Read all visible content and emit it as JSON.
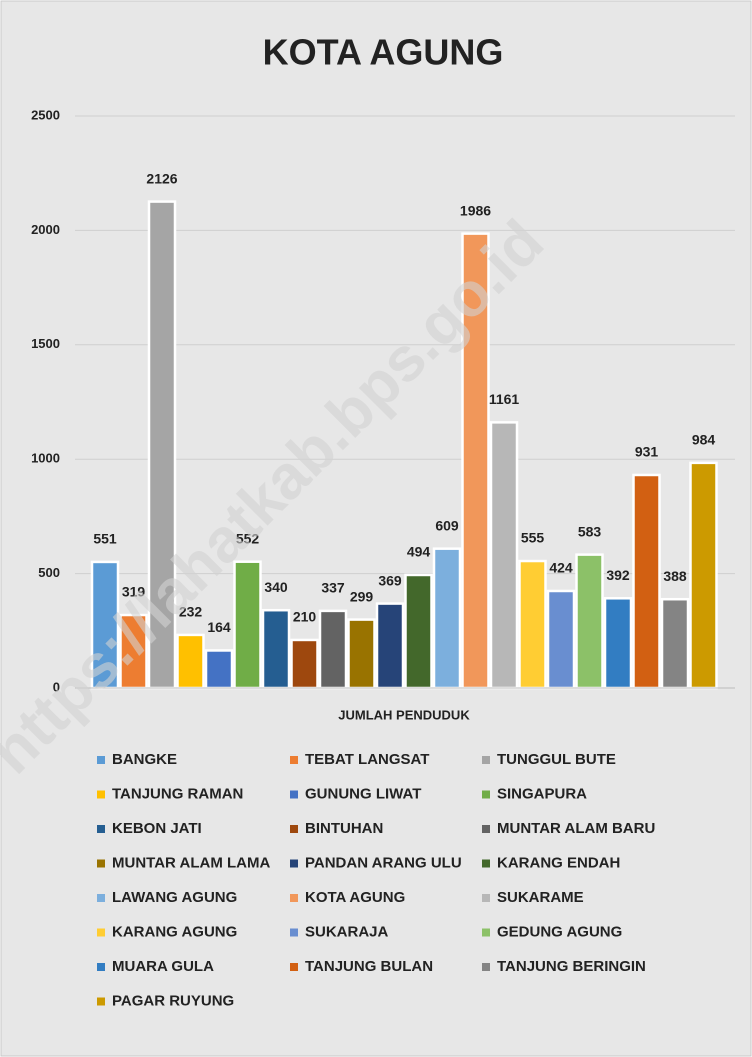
{
  "chart_data": {
    "type": "bar",
    "title": "KOTA AGUNG",
    "categories": [
      "JUMLAH PENDUDUK"
    ],
    "ylim": [
      0,
      2500
    ],
    "yticks": [
      0,
      500,
      1000,
      1500,
      2000,
      2500
    ],
    "grid": true,
    "legend": "bottom",
    "watermark": "https://lahatkab.bps.go.id",
    "series": [
      {
        "name": "BANGKE",
        "color": "#5b9bd5",
        "values": [
          551
        ]
      },
      {
        "name": "TEBAT LANGSAT",
        "color": "#ed7d31",
        "values": [
          319
        ]
      },
      {
        "name": "TUNGGUL BUTE",
        "color": "#a5a5a5",
        "values": [
          2126
        ]
      },
      {
        "name": "TANJUNG RAMAN",
        "color": "#ffc000",
        "values": [
          232
        ]
      },
      {
        "name": "GUNUNG LIWAT",
        "color": "#4472c4",
        "values": [
          164
        ]
      },
      {
        "name": "SINGAPURA",
        "color": "#70ad47",
        "values": [
          552
        ]
      },
      {
        "name": "KEBON JATI",
        "color": "#255e91",
        "values": [
          340
        ]
      },
      {
        "name": "BINTUHAN",
        "color": "#9e480e",
        "values": [
          210
        ]
      },
      {
        "name": "MUNTAR ALAM BARU",
        "color": "#636363",
        "values": [
          337
        ]
      },
      {
        "name": "MUNTAR ALAM LAMA",
        "color": "#997300",
        "values": [
          299
        ]
      },
      {
        "name": "PANDAN ARANG ULU",
        "color": "#264478",
        "values": [
          369
        ]
      },
      {
        "name": "KARANG ENDAH",
        "color": "#43682b",
        "values": [
          494
        ]
      },
      {
        "name": "LAWANG AGUNG",
        "color": "#7cafdd",
        "values": [
          609
        ]
      },
      {
        "name": "KOTA AGUNG",
        "color": "#f1975a",
        "values": [
          1986
        ]
      },
      {
        "name": "SUKARAME",
        "color": "#b7b7b7",
        "values": [
          1161
        ]
      },
      {
        "name": "KARANG AGUNG",
        "color": "#ffcd33",
        "values": [
          555
        ]
      },
      {
        "name": "SUKARAJA",
        "color": "#698ed0",
        "values": [
          424
        ]
      },
      {
        "name": "GEDUNG AGUNG",
        "color": "#8cc168",
        "values": [
          583
        ]
      },
      {
        "name": "MUARA GULA",
        "color": "#327dc2",
        "values": [
          392
        ]
      },
      {
        "name": "TANJUNG BULAN",
        "color": "#d26012",
        "values": [
          931
        ]
      },
      {
        "name": "TANJUNG BERINGIN",
        "color": "#848484",
        "values": [
          388
        ]
      },
      {
        "name": "PAGAR RUYUNG",
        "color": "#cc9a00",
        "values": [
          984
        ]
      }
    ]
  }
}
